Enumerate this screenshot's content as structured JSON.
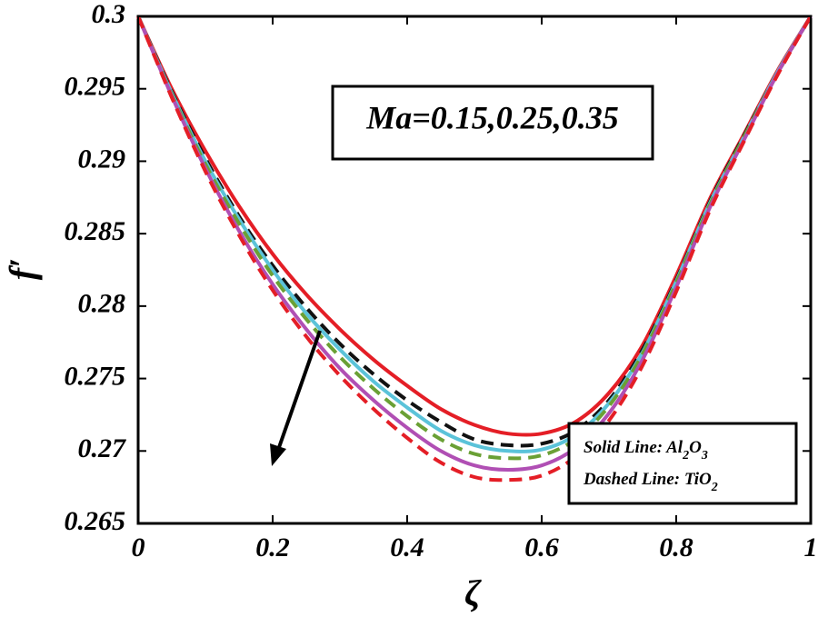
{
  "chart_data": {
    "type": "line",
    "title": "",
    "xlabel": "ζ",
    "ylabel": "f′",
    "xlim": [
      0,
      1
    ],
    "ylim": [
      0.265,
      0.3
    ],
    "grid": false,
    "x_ticks": [
      "0",
      "0.2",
      "0.4",
      "0.6",
      "0.8",
      "1"
    ],
    "y_ticks": [
      "0.3",
      "0.295",
      "0.29",
      "0.285",
      "0.28",
      "0.275",
      "0.27",
      "0.265"
    ],
    "x": [
      0,
      0.05,
      0.1,
      0.15,
      0.2,
      0.25,
      0.3,
      0.35,
      0.4,
      0.45,
      0.5,
      0.55,
      0.6,
      0.65,
      0.7,
      0.75,
      0.8,
      0.85,
      0.9,
      0.95,
      1
    ],
    "series": [
      {
        "name": "Al2O3, Ma=0.15",
        "color": "#e41e26",
        "style": "solid",
        "values": [
          0.3,
          0.295,
          0.2907,
          0.2869,
          0.2836,
          0.2808,
          0.2784,
          0.2763,
          0.2745,
          0.2729,
          0.2718,
          0.2712,
          0.2712,
          0.272,
          0.274,
          0.2773,
          0.2821,
          0.2874,
          0.2918,
          0.2962,
          0.3
        ]
      },
      {
        "name": "TiO2, Ma=0.15",
        "color": "#111111",
        "style": "dashed",
        "values": [
          0.3,
          0.2948,
          0.2902,
          0.2862,
          0.2828,
          0.2799,
          0.2774,
          0.2753,
          0.2735,
          0.272,
          0.2708,
          0.2704,
          0.2705,
          0.2714,
          0.2735,
          0.277,
          0.2818,
          0.2872,
          0.2917,
          0.2961,
          0.3
        ]
      },
      {
        "name": "Al2O3, Ma=0.25",
        "color": "#5bc3d9",
        "style": "solid",
        "values": [
          0.3,
          0.2947,
          0.29,
          0.286,
          0.2825,
          0.2795,
          0.277,
          0.2748,
          0.273,
          0.2714,
          0.2704,
          0.27,
          0.2701,
          0.2711,
          0.2733,
          0.2768,
          0.2817,
          0.2871,
          0.2916,
          0.2961,
          0.3
        ]
      },
      {
        "name": "TiO2, Ma=0.25",
        "color": "#6aa035",
        "style": "dashed",
        "values": [
          0.3,
          0.2946,
          0.2898,
          0.2857,
          0.2821,
          0.2791,
          0.2765,
          0.2743,
          0.2724,
          0.2708,
          0.2698,
          0.2695,
          0.2697,
          0.2708,
          0.2731,
          0.2767,
          0.2816,
          0.287,
          0.2916,
          0.296,
          0.3
        ]
      },
      {
        "name": "Al2O3, Ma=0.35",
        "color": "#b04fb4",
        "style": "solid",
        "values": [
          0.3,
          0.2945,
          0.2895,
          0.2852,
          0.2815,
          0.2784,
          0.2757,
          0.2735,
          0.2716,
          0.27,
          0.269,
          0.2687,
          0.269,
          0.2702,
          0.2726,
          0.2763,
          0.2813,
          0.2868,
          0.2914,
          0.296,
          0.3
        ]
      },
      {
        "name": "TiO2, Ma=0.35",
        "color": "#e41e26",
        "style": "dashed",
        "values": [
          0.3,
          0.2944,
          0.2893,
          0.2849,
          0.2811,
          0.2779,
          0.2752,
          0.2729,
          0.2709,
          0.2692,
          0.2682,
          0.268,
          0.2683,
          0.2696,
          0.2721,
          0.2759,
          0.281,
          0.2866,
          0.2913,
          0.2959,
          0.3
        ]
      }
    ],
    "annotations": {
      "ma_box": "Ma=0.15,0.25,0.35",
      "legend_line1_prefix": "Solid Line: Al",
      "legend_line1_sub1": "2",
      "legend_line1_mid": "O",
      "legend_line1_sub2": "3",
      "legend_line2_prefix": "Dashed Line: TiO",
      "legend_line2_sub": "2",
      "arrow_direction": "increasing Ma decreases f′"
    }
  }
}
